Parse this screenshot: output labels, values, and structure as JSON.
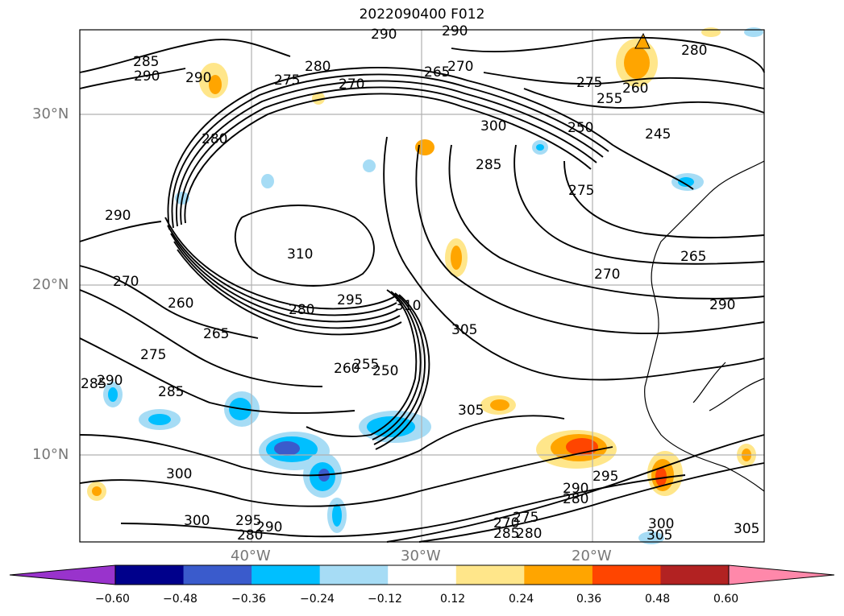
{
  "title": "2022090400 F012",
  "lat_labels": [
    "30°N",
    "20°N",
    "10°N"
  ],
  "lon_labels": [
    "40°W",
    "30°W",
    "20°W"
  ],
  "colorbar": {
    "colors": [
      "#9933cc",
      "#00008b",
      "#3a5bcc",
      "#00bfff",
      "#a6dcf5",
      "#ffffff",
      "#ffe68a",
      "#ffa500",
      "#ff4500",
      "#b22222",
      "#ff88aa"
    ],
    "tick_labels": [
      "−0.60",
      "−0.48",
      "−0.36",
      "−0.24",
      "−0.12",
      "0.12",
      "0.24",
      "0.36",
      "0.48",
      "0.60"
    ]
  },
  "contour_labels": [
    {
      "text": "290"
    },
    {
      "text": "290"
    },
    {
      "text": "285"
    },
    {
      "text": "290"
    },
    {
      "text": "290"
    },
    {
      "text": "280"
    },
    {
      "text": "275"
    },
    {
      "text": "270"
    },
    {
      "text": "265"
    },
    {
      "text": "270"
    },
    {
      "text": "280"
    },
    {
      "text": "275"
    },
    {
      "text": "260"
    },
    {
      "text": "255"
    },
    {
      "text": "300"
    },
    {
      "text": "250"
    },
    {
      "text": "245"
    },
    {
      "text": "280"
    },
    {
      "text": "285"
    },
    {
      "text": "275"
    },
    {
      "text": "290"
    },
    {
      "text": "310"
    },
    {
      "text": "265"
    },
    {
      "text": "270"
    },
    {
      "text": "270"
    },
    {
      "text": "260"
    },
    {
      "text": "280"
    },
    {
      "text": "295"
    },
    {
      "text": "310"
    },
    {
      "text": "290"
    },
    {
      "text": "265"
    },
    {
      "text": "305"
    },
    {
      "text": "275"
    },
    {
      "text": "260"
    },
    {
      "text": "255"
    },
    {
      "text": "250"
    },
    {
      "text": "285"
    },
    {
      "text": "290"
    },
    {
      "text": "285"
    },
    {
      "text": "305"
    },
    {
      "text": "300"
    },
    {
      "text": "295"
    },
    {
      "text": "290"
    },
    {
      "text": "280"
    },
    {
      "text": "300"
    },
    {
      "text": "295"
    },
    {
      "text": "290"
    },
    {
      "text": "280"
    },
    {
      "text": "275"
    },
    {
      "text": "270"
    },
    {
      "text": "285"
    },
    {
      "text": "280"
    },
    {
      "text": "300"
    },
    {
      "text": "305"
    },
    {
      "text": "305"
    }
  ]
}
